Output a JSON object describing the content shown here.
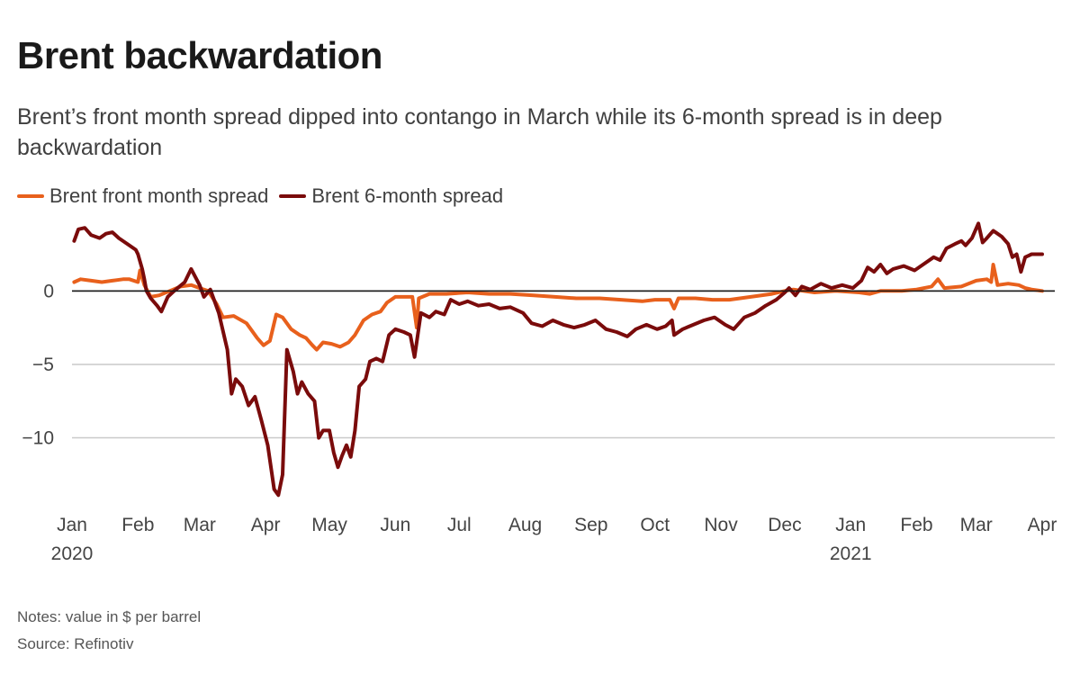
{
  "title": "Brent backwardation",
  "subtitle": "Brent’s front month spread dipped into contango in March while its 6-month spread is in deep backwardation",
  "notes": "Notes: value in $ per barrel",
  "source": "Source: Refinotiv",
  "colors": {
    "front": "#e8601c",
    "six": "#7a0b0b",
    "grid": "#c9c9c9",
    "zero": "#1a1a1a"
  },
  "chart_data": {
    "type": "line",
    "title": "Brent backwardation",
    "xlabel": "",
    "ylabel": "",
    "ylim": [
      -14.5,
      4.8
    ],
    "xlim": [
      "2020-01-01",
      "2021-04-01"
    ],
    "grid": true,
    "legend": "top-left",
    "yticks": [
      {
        "value": 0,
        "label": "0"
      },
      {
        "value": -5,
        "label": "−5"
      },
      {
        "value": -10,
        "label": "−10"
      }
    ],
    "xticks": [
      {
        "date": "2020-01-01",
        "label": "Jan",
        "year": "2020"
      },
      {
        "date": "2020-02-01",
        "label": "Feb",
        "year": ""
      },
      {
        "date": "2020-03-01",
        "label": "Mar",
        "year": ""
      },
      {
        "date": "2020-04-01",
        "label": "Apr",
        "year": ""
      },
      {
        "date": "2020-05-01",
        "label": "May",
        "year": ""
      },
      {
        "date": "2020-06-01",
        "label": "Jun",
        "year": ""
      },
      {
        "date": "2020-07-01",
        "label": "Jul",
        "year": ""
      },
      {
        "date": "2020-08-01",
        "label": "Aug",
        "year": ""
      },
      {
        "date": "2020-09-01",
        "label": "Sep",
        "year": ""
      },
      {
        "date": "2020-10-01",
        "label": "Oct",
        "year": ""
      },
      {
        "date": "2020-11-01",
        "label": "Nov",
        "year": ""
      },
      {
        "date": "2020-12-01",
        "label": "Dec",
        "year": ""
      },
      {
        "date": "2021-01-01",
        "label": "Jan",
        "year": "2021"
      },
      {
        "date": "2021-02-01",
        "label": "Feb",
        "year": ""
      },
      {
        "date": "2021-03-01",
        "label": "Mar",
        "year": ""
      },
      {
        "date": "2021-04-01",
        "label": "Apr",
        "year": ""
      }
    ],
    "series": [
      {
        "name": "Brent front month spread",
        "color": "#e8601c",
        "points": [
          [
            "2020-01-02",
            0.6
          ],
          [
            "2020-01-05",
            0.8
          ],
          [
            "2020-01-10",
            0.7
          ],
          [
            "2020-01-15",
            0.6
          ],
          [
            "2020-01-20",
            0.7
          ],
          [
            "2020-01-25",
            0.8
          ],
          [
            "2020-01-28",
            0.8
          ],
          [
            "2020-02-01",
            0.6
          ],
          [
            "2020-02-02",
            1.4
          ],
          [
            "2020-02-04",
            0.4
          ],
          [
            "2020-02-07",
            -0.4
          ],
          [
            "2020-02-11",
            -0.3
          ],
          [
            "2020-02-16",
            0.0
          ],
          [
            "2020-02-21",
            0.3
          ],
          [
            "2020-02-26",
            0.4
          ],
          [
            "2020-03-01",
            0.2
          ],
          [
            "2020-03-05",
            0.0
          ],
          [
            "2020-03-09",
            -0.9
          ],
          [
            "2020-03-12",
            -1.8
          ],
          [
            "2020-03-17",
            -1.7
          ],
          [
            "2020-03-23",
            -2.2
          ],
          [
            "2020-03-28",
            -3.2
          ],
          [
            "2020-03-31",
            -3.7
          ],
          [
            "2020-04-03",
            -3.4
          ],
          [
            "2020-04-06",
            -1.6
          ],
          [
            "2020-04-09",
            -1.8
          ],
          [
            "2020-04-13",
            -2.6
          ],
          [
            "2020-04-17",
            -3.0
          ],
          [
            "2020-04-20",
            -3.2
          ],
          [
            "2020-04-23",
            -3.7
          ],
          [
            "2020-04-25",
            -4.0
          ],
          [
            "2020-04-28",
            -3.5
          ],
          [
            "2020-05-02",
            -3.6
          ],
          [
            "2020-05-06",
            -3.8
          ],
          [
            "2020-05-10",
            -3.5
          ],
          [
            "2020-05-13",
            -3.0
          ],
          [
            "2020-05-17",
            -2.0
          ],
          [
            "2020-05-21",
            -1.6
          ],
          [
            "2020-05-25",
            -1.4
          ],
          [
            "2020-05-28",
            -0.8
          ],
          [
            "2020-06-01",
            -0.4
          ],
          [
            "2020-06-06",
            -0.4
          ],
          [
            "2020-06-09",
            -0.4
          ],
          [
            "2020-06-11",
            -2.5
          ],
          [
            "2020-06-12",
            -0.5
          ],
          [
            "2020-06-17",
            -0.2
          ],
          [
            "2020-06-25",
            -0.2
          ],
          [
            "2020-07-05",
            -0.1
          ],
          [
            "2020-07-15",
            -0.2
          ],
          [
            "2020-07-25",
            -0.2
          ],
          [
            "2020-08-05",
            -0.3
          ],
          [
            "2020-08-15",
            -0.4
          ],
          [
            "2020-08-25",
            -0.5
          ],
          [
            "2020-09-05",
            -0.5
          ],
          [
            "2020-09-15",
            -0.6
          ],
          [
            "2020-09-25",
            -0.7
          ],
          [
            "2020-10-01",
            -0.6
          ],
          [
            "2020-10-08",
            -0.6
          ],
          [
            "2020-10-10",
            -1.2
          ],
          [
            "2020-10-12",
            -0.5
          ],
          [
            "2020-10-20",
            -0.5
          ],
          [
            "2020-10-28",
            -0.6
          ],
          [
            "2020-11-05",
            -0.6
          ],
          [
            "2020-11-15",
            -0.4
          ],
          [
            "2020-11-25",
            -0.2
          ],
          [
            "2020-12-01",
            0.0
          ],
          [
            "2020-12-05",
            0.1
          ],
          [
            "2020-12-15",
            -0.1
          ],
          [
            "2020-12-25",
            0.0
          ],
          [
            "2021-01-05",
            -0.1
          ],
          [
            "2021-01-10",
            -0.2
          ],
          [
            "2021-01-15",
            0.0
          ],
          [
            "2021-01-25",
            0.0
          ],
          [
            "2021-02-01",
            0.1
          ],
          [
            "2021-02-08",
            0.3
          ],
          [
            "2021-02-11",
            0.8
          ],
          [
            "2021-02-14",
            0.2
          ],
          [
            "2021-02-22",
            0.3
          ],
          [
            "2021-03-01",
            0.7
          ],
          [
            "2021-03-06",
            0.8
          ],
          [
            "2021-03-08",
            0.6
          ],
          [
            "2021-03-09",
            1.8
          ],
          [
            "2021-03-11",
            0.4
          ],
          [
            "2021-03-16",
            0.5
          ],
          [
            "2021-03-21",
            0.4
          ],
          [
            "2021-03-24",
            0.2
          ],
          [
            "2021-03-27",
            0.1
          ],
          [
            "2021-04-01",
            0.0
          ]
        ]
      },
      {
        "name": "Brent 6-month spread",
        "color": "#7a0b0b",
        "points": [
          [
            "2020-01-02",
            3.4
          ],
          [
            "2020-01-04",
            4.2
          ],
          [
            "2020-01-07",
            4.3
          ],
          [
            "2020-01-10",
            3.8
          ],
          [
            "2020-01-14",
            3.6
          ],
          [
            "2020-01-17",
            3.9
          ],
          [
            "2020-01-20",
            4.0
          ],
          [
            "2020-01-23",
            3.6
          ],
          [
            "2020-01-27",
            3.2
          ],
          [
            "2020-01-31",
            2.8
          ],
          [
            "2020-02-01",
            2.5
          ],
          [
            "2020-02-03",
            1.5
          ],
          [
            "2020-02-04",
            0.8
          ],
          [
            "2020-02-05",
            0.0
          ],
          [
            "2020-02-07",
            -0.5
          ],
          [
            "2020-02-10",
            -1.0
          ],
          [
            "2020-02-12",
            -1.4
          ],
          [
            "2020-02-15",
            -0.4
          ],
          [
            "2020-02-18",
            0.0
          ],
          [
            "2020-02-23",
            0.6
          ],
          [
            "2020-02-26",
            1.5
          ],
          [
            "2020-03-01",
            0.4
          ],
          [
            "2020-03-03",
            -0.4
          ],
          [
            "2020-03-06",
            0.1
          ],
          [
            "2020-03-10",
            -1.5
          ],
          [
            "2020-03-14",
            -4.0
          ],
          [
            "2020-03-16",
            -7.0
          ],
          [
            "2020-03-18",
            -6.0
          ],
          [
            "2020-03-21",
            -6.5
          ],
          [
            "2020-03-24",
            -7.8
          ],
          [
            "2020-03-27",
            -7.2
          ],
          [
            "2020-03-30",
            -8.8
          ],
          [
            "2020-04-02",
            -10.5
          ],
          [
            "2020-04-05",
            -13.5
          ],
          [
            "2020-04-07",
            -13.9
          ],
          [
            "2020-04-09",
            -12.5
          ],
          [
            "2020-04-11",
            -4.0
          ],
          [
            "2020-04-14",
            -5.5
          ],
          [
            "2020-04-16",
            -7.0
          ],
          [
            "2020-04-18",
            -6.2
          ],
          [
            "2020-04-21",
            -7.0
          ],
          [
            "2020-04-24",
            -7.5
          ],
          [
            "2020-04-26",
            -10.0
          ],
          [
            "2020-04-28",
            -9.5
          ],
          [
            "2020-05-01",
            -9.5
          ],
          [
            "2020-05-03",
            -11.0
          ],
          [
            "2020-05-05",
            -12.0
          ],
          [
            "2020-05-07",
            -11.2
          ],
          [
            "2020-05-09",
            -10.5
          ],
          [
            "2020-05-11",
            -11.3
          ],
          [
            "2020-05-13",
            -9.5
          ],
          [
            "2020-05-15",
            -6.5
          ],
          [
            "2020-05-18",
            -6.0
          ],
          [
            "2020-05-20",
            -4.8
          ],
          [
            "2020-05-23",
            -4.6
          ],
          [
            "2020-05-26",
            -4.8
          ],
          [
            "2020-05-29",
            -3.0
          ],
          [
            "2020-06-01",
            -2.6
          ],
          [
            "2020-06-05",
            -2.8
          ],
          [
            "2020-06-08",
            -3.0
          ],
          [
            "2020-06-10",
            -4.5
          ],
          [
            "2020-06-13",
            -1.5
          ],
          [
            "2020-06-17",
            -1.8
          ],
          [
            "2020-06-20",
            -1.4
          ],
          [
            "2020-06-24",
            -1.6
          ],
          [
            "2020-06-27",
            -0.6
          ],
          [
            "2020-07-01",
            -0.9
          ],
          [
            "2020-07-05",
            -0.7
          ],
          [
            "2020-07-10",
            -1.0
          ],
          [
            "2020-07-15",
            -0.9
          ],
          [
            "2020-07-20",
            -1.2
          ],
          [
            "2020-07-25",
            -1.1
          ],
          [
            "2020-07-31",
            -1.5
          ],
          [
            "2020-08-04",
            -2.2
          ],
          [
            "2020-08-09",
            -2.4
          ],
          [
            "2020-08-14",
            -2.0
          ],
          [
            "2020-08-19",
            -2.3
          ],
          [
            "2020-08-24",
            -2.5
          ],
          [
            "2020-08-29",
            -2.3
          ],
          [
            "2020-09-03",
            -2.0
          ],
          [
            "2020-09-08",
            -2.6
          ],
          [
            "2020-09-13",
            -2.8
          ],
          [
            "2020-09-18",
            -3.1
          ],
          [
            "2020-09-22",
            -2.6
          ],
          [
            "2020-09-27",
            -2.3
          ],
          [
            "2020-10-02",
            -2.6
          ],
          [
            "2020-10-06",
            -2.4
          ],
          [
            "2020-10-09",
            -2.0
          ],
          [
            "2020-10-10",
            -3.0
          ],
          [
            "2020-10-14",
            -2.6
          ],
          [
            "2020-10-19",
            -2.3
          ],
          [
            "2020-10-24",
            -2.0
          ],
          [
            "2020-10-29",
            -1.8
          ],
          [
            "2020-11-03",
            -2.3
          ],
          [
            "2020-11-07",
            -2.6
          ],
          [
            "2020-11-12",
            -1.8
          ],
          [
            "2020-11-17",
            -1.5
          ],
          [
            "2020-11-22",
            -1.0
          ],
          [
            "2020-11-27",
            -0.6
          ],
          [
            "2020-12-01",
            -0.1
          ],
          [
            "2020-12-03",
            0.2
          ],
          [
            "2020-12-06",
            -0.3
          ],
          [
            "2020-12-09",
            0.3
          ],
          [
            "2020-12-13",
            0.1
          ],
          [
            "2020-12-18",
            0.5
          ],
          [
            "2020-12-23",
            0.2
          ],
          [
            "2020-12-28",
            0.4
          ],
          [
            "2021-01-02",
            0.2
          ],
          [
            "2021-01-06",
            0.7
          ],
          [
            "2021-01-09",
            1.6
          ],
          [
            "2021-01-12",
            1.3
          ],
          [
            "2021-01-15",
            1.8
          ],
          [
            "2021-01-18",
            1.2
          ],
          [
            "2021-01-21",
            1.5
          ],
          [
            "2021-01-26",
            1.7
          ],
          [
            "2021-01-31",
            1.4
          ],
          [
            "2021-02-04",
            1.8
          ],
          [
            "2021-02-09",
            2.3
          ],
          [
            "2021-02-12",
            2.1
          ],
          [
            "2021-02-15",
            2.9
          ],
          [
            "2021-02-19",
            3.2
          ],
          [
            "2021-02-22",
            3.4
          ],
          [
            "2021-02-24",
            3.1
          ],
          [
            "2021-02-27",
            3.6
          ],
          [
            "2021-03-02",
            4.6
          ],
          [
            "2021-03-04",
            3.3
          ],
          [
            "2021-03-06",
            3.6
          ],
          [
            "2021-03-09",
            4.1
          ],
          [
            "2021-03-11",
            3.9
          ],
          [
            "2021-03-13",
            3.7
          ],
          [
            "2021-03-16",
            3.2
          ],
          [
            "2021-03-18",
            2.3
          ],
          [
            "2021-03-20",
            2.5
          ],
          [
            "2021-03-22",
            1.3
          ],
          [
            "2021-03-24",
            2.3
          ],
          [
            "2021-03-27",
            2.5
          ],
          [
            "2021-04-01",
            2.5
          ]
        ]
      }
    ]
  }
}
